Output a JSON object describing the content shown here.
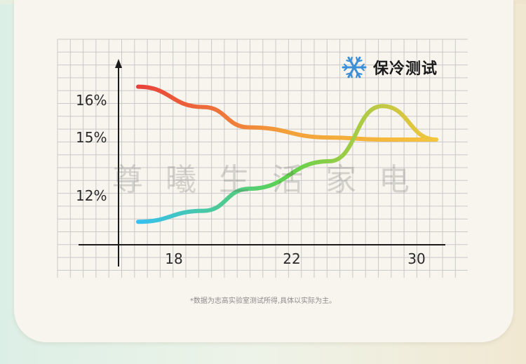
{
  "title": "保冷测试",
  "title_icon": "snowflake-icon",
  "watermark": "尊曦生活家电",
  "footnote": "*数据为志高实验室测试所得,具体以实际为主。",
  "colors": {
    "grid": "#c9c9c9",
    "axis": "#1a1a1a",
    "snowflake": "#3a8fd8"
  },
  "chart_data": {
    "type": "line",
    "x_tick_labels": [
      "18",
      "22",
      "30"
    ],
    "y_tick_labels": [
      "16%",
      "15%",
      "12%"
    ],
    "series": [
      {
        "gradient": [
          "#e8413a",
          "#f3a03a",
          "#f6c43e"
        ],
        "points": [
          [
            17,
            16.3
          ],
          [
            19,
            15.8
          ],
          [
            21,
            15.3
          ],
          [
            24,
            15.05
          ],
          [
            27,
            15.0
          ],
          [
            31,
            15.0
          ]
        ]
      },
      {
        "gradient": [
          "#36c0f0",
          "#5fd24c",
          "#f6c43e"
        ],
        "points": [
          [
            17,
            11.5
          ],
          [
            19,
            11.7
          ],
          [
            21,
            12.1
          ],
          [
            24,
            12.6
          ],
          [
            27,
            13.6
          ],
          [
            31,
            15.0
          ]
        ]
      }
    ]
  }
}
